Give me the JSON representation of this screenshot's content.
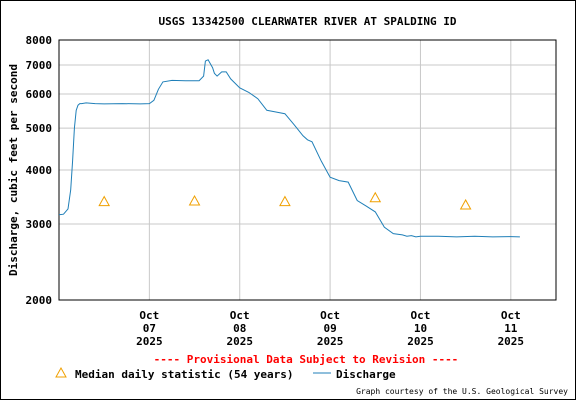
{
  "chart_data": {
    "type": "line",
    "title": "USGS 13342500 CLEARWATER RIVER AT SPALDING ID",
    "ylabel": "Discharge, cubic feet per second",
    "xlabel": "",
    "y_scale": "log",
    "ylim": [
      2000,
      8000
    ],
    "y_ticks": [
      2000,
      3000,
      4000,
      5000,
      6000,
      7000,
      8000
    ],
    "x_ticks": [
      {
        "day": 1,
        "label": [
          "Oct",
          "07",
          "2025"
        ]
      },
      {
        "day": 2,
        "label": [
          "Oct",
          "08",
          "2025"
        ]
      },
      {
        "day": 3,
        "label": [
          "Oct",
          "09",
          "2025"
        ]
      },
      {
        "day": 4,
        "label": [
          "Oct",
          "10",
          "2025"
        ]
      },
      {
        "day": 5,
        "label": [
          "Oct",
          "11",
          "2025"
        ]
      }
    ],
    "xlim": [
      0,
      5.5
    ],
    "grid": true,
    "series": [
      {
        "name": "Discharge",
        "color": "#1f7fb8",
        "x": [
          0.0,
          0.05,
          0.1,
          0.13,
          0.15,
          0.17,
          0.19,
          0.21,
          0.23,
          0.25,
          0.3,
          0.4,
          0.5,
          0.7,
          0.9,
          1.0,
          1.05,
          1.1,
          1.15,
          1.25,
          1.4,
          1.55,
          1.6,
          1.62,
          1.65,
          1.7,
          1.72,
          1.75,
          1.8,
          1.85,
          1.9,
          2.0,
          2.1,
          2.2,
          2.3,
          2.4,
          2.5,
          2.6,
          2.7,
          2.75,
          2.8,
          2.9,
          3.0,
          3.1,
          3.2,
          3.3,
          3.4,
          3.5,
          3.6,
          3.7,
          3.8,
          3.85,
          3.9,
          3.95,
          4.0,
          4.1,
          4.2,
          4.4,
          4.6,
          4.8,
          5.0,
          5.1
        ],
        "values": [
          3150,
          3160,
          3250,
          3600,
          4200,
          5000,
          5500,
          5650,
          5700,
          5700,
          5720,
          5700,
          5690,
          5700,
          5690,
          5700,
          5800,
          6150,
          6400,
          6450,
          6440,
          6440,
          6600,
          7150,
          7200,
          6900,
          6700,
          6600,
          6750,
          6750,
          6500,
          6200,
          6050,
          5850,
          5500,
          5450,
          5400,
          5100,
          4800,
          4700,
          4650,
          4200,
          3850,
          3780,
          3750,
          3400,
          3300,
          3200,
          2950,
          2850,
          2830,
          2810,
          2820,
          2800,
          2810,
          2810,
          2810,
          2800,
          2810,
          2800,
          2805,
          2800
        ]
      },
      {
        "name": "Median daily statistic (54 years)",
        "marker": "triangle",
        "color": "#f0a000",
        "x": [
          0.5,
          1.5,
          2.5,
          3.5,
          4.5
        ],
        "values": [
          3380,
          3390,
          3380,
          3450,
          3320
        ]
      }
    ],
    "legend": {
      "placement": "bottom",
      "median_label": "Median daily statistic (54 years)",
      "discharge_label": "Discharge"
    },
    "provisional_note": "---- Provisional Data Subject to Revision ----",
    "credit": "Graph courtesy of the U.S. Geological Survey"
  }
}
